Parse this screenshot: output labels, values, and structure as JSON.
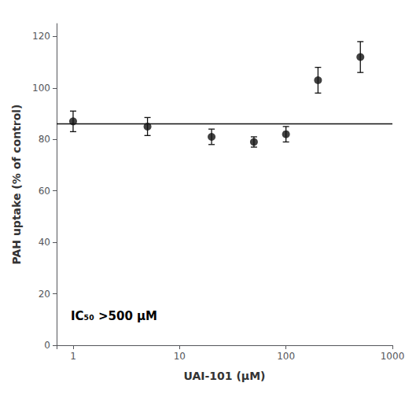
{
  "chart_data": {
    "type": "scatter",
    "xlabel": "UAI-101 (μM)",
    "ylabel": "PAH uptake (% of control)",
    "annotation": "IC₅₀ >500 μM",
    "x": [
      1,
      5,
      20,
      50,
      100,
      200,
      500
    ],
    "values": [
      87,
      85,
      81,
      79,
      82,
      103,
      112
    ],
    "errors": [
      4,
      3.5,
      3,
      2,
      3,
      5,
      6
    ],
    "fit_y": 86,
    "color": "#111111",
    "log": "x",
    "xlim": [
      0.7,
      1000
    ],
    "xticks": [
      1,
      10,
      100,
      1000
    ],
    "ylim": [
      0,
      125
    ],
    "yticks": [
      0,
      20,
      40,
      60,
      80,
      100,
      120
    ],
    "grid": false
  }
}
